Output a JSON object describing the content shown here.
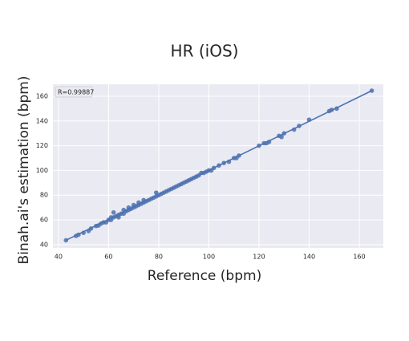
{
  "chart_data": {
    "type": "scatter",
    "title": "HR (iOS)",
    "xlabel": "Reference (bpm)",
    "ylabel": "Binah.ai's estimation (bpm)",
    "annotation": "R=0.99887",
    "x": [
      43,
      47,
      48,
      50,
      52,
      53,
      55,
      56,
      57,
      58,
      59,
      60,
      61,
      61,
      62,
      62,
      63,
      64,
      64,
      65,
      66,
      66,
      67,
      68,
      68,
      69,
      70,
      70,
      71,
      72,
      72,
      73,
      74,
      74,
      75,
      76,
      77,
      78,
      79,
      79,
      80,
      81,
      82,
      83,
      84,
      85,
      86,
      87,
      88,
      89,
      90,
      91,
      92,
      93,
      94,
      95,
      96,
      97,
      98,
      99,
      100,
      101,
      102,
      104,
      106,
      108,
      110,
      111,
      112,
      120,
      122,
      123,
      124,
      128,
      129,
      130,
      134,
      136,
      140,
      148,
      149,
      151,
      165
    ],
    "values": [
      43.5,
      47,
      48,
      49.5,
      51,
      53,
      55,
      55.5,
      57,
      58,
      58,
      60,
      60,
      62,
      62,
      66,
      63,
      64,
      62,
      65,
      65,
      68,
      67,
      68,
      70,
      69,
      70,
      72,
      71,
      72,
      74,
      73,
      74,
      76,
      75,
      76,
      77,
      78,
      79,
      82,
      80,
      81,
      82,
      83,
      84,
      85,
      86,
      87,
      88,
      89,
      90,
      91,
      92,
      93,
      94,
      95,
      96,
      98,
      98,
      99,
      100,
      100,
      102,
      104,
      106,
      107,
      110,
      110,
      112,
      120,
      122,
      122,
      123,
      128,
      127,
      130,
      133,
      136,
      141,
      148,
      149,
      150,
      164.5
    ],
    "color": "#4c72b0",
    "fit_line": {
      "x": [
        43,
        165
      ],
      "y": [
        43.5,
        164.5
      ]
    },
    "xlim": [
      37.8,
      169.6
    ],
    "ylim": [
      37.3,
      169.7
    ],
    "xticks": [
      40,
      60,
      80,
      100,
      120,
      140,
      160
    ],
    "yticks": [
      40,
      60,
      80,
      100,
      120,
      140,
      160
    ],
    "grid": true
  }
}
